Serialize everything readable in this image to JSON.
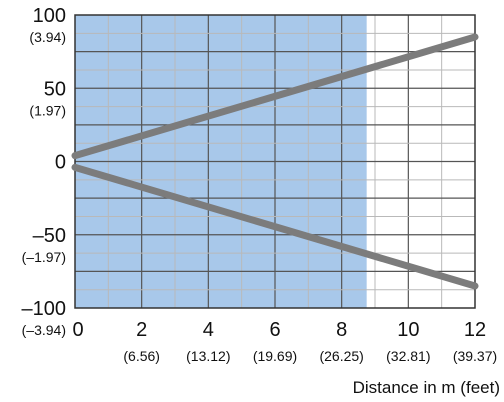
{
  "chart_data": {
    "type": "line",
    "title": "",
    "xlabel": "Distance in m (feet)",
    "ylabel": "",
    "xlim": [
      0,
      12
    ],
    "ylim": [
      -100,
      100
    ],
    "grid": true,
    "shaded_region": {
      "x_from": 0,
      "x_to": 8.75,
      "color": "#a8c8ea"
    },
    "line_color": "#7c7c7c",
    "x_ticks": [
      {
        "value": 0,
        "label": "0",
        "sublabel": ""
      },
      {
        "value": 2,
        "label": "2",
        "sublabel": "(6.56)"
      },
      {
        "value": 4,
        "label": "4",
        "sublabel": "(13.12)"
      },
      {
        "value": 6,
        "label": "6",
        "sublabel": "(19.69)"
      },
      {
        "value": 8,
        "label": "8",
        "sublabel": "(26.25)"
      },
      {
        "value": 10,
        "label": "10",
        "sublabel": "(32.81)"
      },
      {
        "value": 12,
        "label": "12",
        "sublabel": "(39.37)"
      }
    ],
    "y_ticks": [
      {
        "value": 100,
        "label": "100",
        "sublabel": "(3.94)"
      },
      {
        "value": 50,
        "label": "50",
        "sublabel": "(1.97)"
      },
      {
        "value": 0,
        "label": "0",
        "sublabel": ""
      },
      {
        "value": -50,
        "label": "–50",
        "sublabel": "(–1.97)"
      },
      {
        "value": -100,
        "label": "–100",
        "sublabel": "(–3.94)"
      }
    ],
    "series": [
      {
        "x": [
          0,
          12
        ],
        "y": [
          4,
          85
        ]
      },
      {
        "x": [
          0,
          12
        ],
        "y": [
          -4,
          -85
        ]
      }
    ]
  }
}
